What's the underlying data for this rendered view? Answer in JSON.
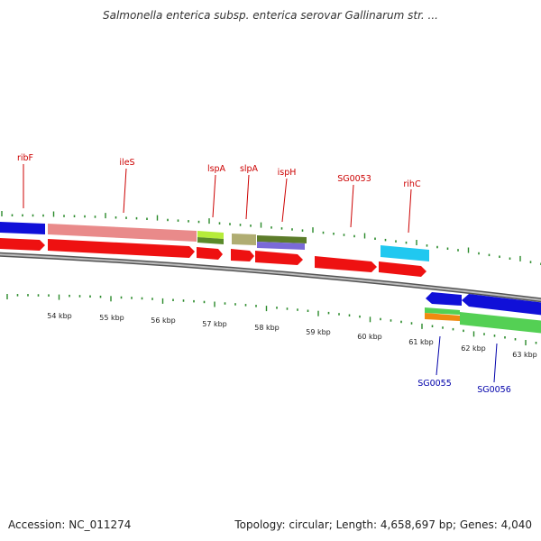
{
  "title": "Salmonella enterica subsp. enterica serovar Gallinarum str. ...",
  "footer": {
    "accession": "Accession: NC_011274",
    "summary": "Topology: circular; Length: 4,658,697 bp; Genes: 4,040"
  },
  "colors": {
    "backbone": "#8c8c8c",
    "tick": "#2a8a2a",
    "forward_label": "#cc0000",
    "reverse_label": "#0000aa",
    "cds": "#ee1111"
  },
  "top_labels": [
    "ribF",
    "ileS",
    "lspA",
    "slpA",
    "ispH",
    "SG0053",
    "rihC"
  ],
  "bottom_labels": [
    "SG0055",
    "SG0056"
  ],
  "kbp_labels": [
    "54 kbp",
    "55 kbp",
    "56 kbp",
    "57 kbp",
    "58 kbp",
    "59 kbp",
    "60 kbp",
    "61 kbp",
    "62 kbp",
    "63 kbp"
  ]
}
